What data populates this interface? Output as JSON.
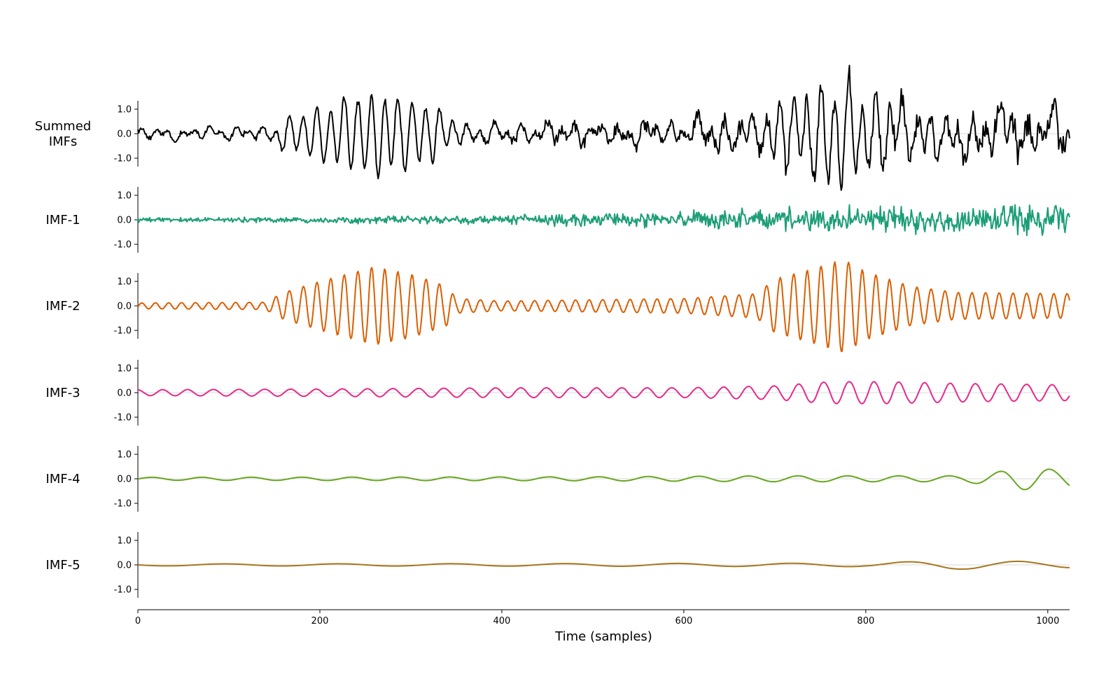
{
  "chart_data": {
    "type": "line",
    "layout": "stacked",
    "xlabel": "Time (samples)",
    "x_range": [
      0,
      1024
    ],
    "x_ticks": [
      0,
      200,
      400,
      600,
      800,
      1000
    ],
    "x_tick_labels": [
      "0",
      "200",
      "400",
      "600",
      "800",
      "1000"
    ],
    "y_ticks": [
      1.0,
      0.0,
      -1.0
    ],
    "y_tick_labels": [
      "1.0",
      "0.0",
      "-1.0"
    ],
    "y_range": [
      -1.3,
      1.3
    ],
    "zero_gridline": true,
    "samples_per_series": 1025,
    "series": [
      {
        "name": "Summed IMFs",
        "label_lines": [
          "Summed",
          "IMFs"
        ],
        "color": "#000000",
        "note": "sum of IMF-1 through IMF-5",
        "y_range": [
          -1.3,
          1.3
        ]
      },
      {
        "name": "IMF-1",
        "label_lines": [
          "IMF-1"
        ],
        "color": "#1b9e77",
        "kind": "broadband noise",
        "envelope_x": [
          0,
          100,
          200,
          300,
          400,
          500,
          600,
          700,
          800,
          900,
          1024
        ],
        "envelope_amplitude": [
          0.12,
          0.15,
          0.18,
          0.2,
          0.28,
          0.35,
          0.5,
          0.65,
          0.75,
          0.9,
          1.0
        ]
      },
      {
        "name": "IMF-2",
        "label_lines": [
          "IMF-2"
        ],
        "color": "#d95f02",
        "kind": "oscillation",
        "period_samples": 15,
        "envelope_x": [
          0,
          140,
          160,
          200,
          260,
          300,
          340,
          350,
          400,
          600,
          680,
          700,
          740,
          775,
          800,
          850,
          900,
          1024
        ],
        "envelope_amplitude": [
          0.12,
          0.15,
          0.55,
          1.0,
          1.6,
          1.3,
          0.8,
          0.3,
          0.2,
          0.3,
          0.5,
          1.1,
          1.5,
          1.9,
          1.4,
          0.8,
          0.55,
          0.5
        ]
      },
      {
        "name": "IMF-3",
        "label_lines": [
          "IMF-3"
        ],
        "color": "#e7298a",
        "kind": "oscillation",
        "period_samples": 28,
        "envelope_x": [
          0,
          200,
          400,
          600,
          700,
          760,
          820,
          900,
          1024
        ],
        "envelope_amplitude": [
          0.12,
          0.15,
          0.2,
          0.2,
          0.28,
          0.45,
          0.45,
          0.38,
          0.32
        ]
      },
      {
        "name": "IMF-4",
        "label_lines": [
          "IMF-4"
        ],
        "color": "#66a61e",
        "kind": "oscillation",
        "period_samples": 55,
        "envelope_x": [
          0,
          300,
          500,
          700,
          900,
          940,
          970,
          1024
        ],
        "envelope_amplitude": [
          0.06,
          0.07,
          0.08,
          0.12,
          0.12,
          0.25,
          0.45,
          0.35
        ]
      },
      {
        "name": "IMF-5",
        "label_lines": [
          "IMF-5"
        ],
        "color": "#a6761d",
        "kind": "oscillation",
        "period_samples": 125,
        "envelope_x": [
          0,
          400,
          800,
          890,
          1024
        ],
        "envelope_amplitude": [
          0.04,
          0.05,
          0.07,
          0.18,
          0.12
        ]
      }
    ]
  }
}
